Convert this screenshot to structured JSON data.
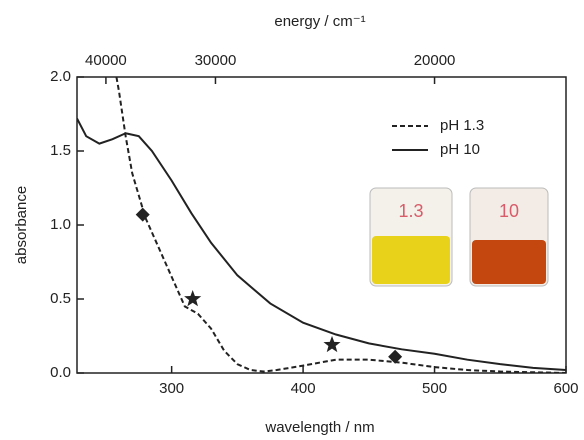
{
  "chart_data": {
    "type": "line",
    "xlabel": "wavelength / nm",
    "ylabel": "absorbance",
    "x2label": "energy / cm⁻¹",
    "xlim": [
      228,
      600
    ],
    "ylim": [
      0,
      2
    ],
    "xticks": [
      300,
      400,
      500,
      600
    ],
    "yticks": [
      {
        "value": 0,
        "label": "0.0"
      },
      {
        "value": 0.5,
        "label": "0.5"
      },
      {
        "value": 1,
        "label": "1.0"
      },
      {
        "value": 1.5,
        "label": "1.5"
      },
      {
        "value": 2,
        "label": "2.0"
      }
    ],
    "x2ticks": [
      40000,
      30000,
      20000
    ],
    "series": [
      {
        "name": "pH 1.3",
        "color": "#222222",
        "dash": true,
        "x": [
          258,
          260,
          265,
          270,
          275,
          280,
          290,
          300,
          305,
          310,
          320,
          330,
          340,
          350,
          360,
          370,
          380,
          400,
          425,
          450,
          475,
          500,
          525,
          550,
          575,
          600
        ],
        "values": [
          2.0,
          1.9,
          1.6,
          1.35,
          1.2,
          1.05,
          0.85,
          0.65,
          0.55,
          0.45,
          0.4,
          0.3,
          0.15,
          0.06,
          0.02,
          0.01,
          0.02,
          0.05,
          0.09,
          0.09,
          0.07,
          0.04,
          0.02,
          0.01,
          0.005,
          0
        ]
      },
      {
        "name": "pH 10",
        "color": "#222222",
        "dash": false,
        "x": [
          228,
          235,
          245,
          255,
          265,
          275,
          285,
          300,
          315,
          330,
          350,
          375,
          400,
          425,
          450,
          475,
          500,
          525,
          550,
          575,
          600
        ],
        "values": [
          1.72,
          1.6,
          1.55,
          1.58,
          1.62,
          1.6,
          1.5,
          1.3,
          1.08,
          0.88,
          0.66,
          0.47,
          0.34,
          0.26,
          0.2,
          0.16,
          0.13,
          0.09,
          0.06,
          0.035,
          0.02
        ]
      }
    ],
    "markers": [
      {
        "shape": "diamond",
        "x": 278,
        "y": 1.07
      },
      {
        "shape": "star",
        "x": 316,
        "y": 0.5
      },
      {
        "shape": "star",
        "x": 422,
        "y": 0.19
      },
      {
        "shape": "diamond",
        "x": 470,
        "y": 0.11
      }
    ],
    "legend": "upper right",
    "inset_labels": [
      "1.3",
      "10"
    ]
  }
}
